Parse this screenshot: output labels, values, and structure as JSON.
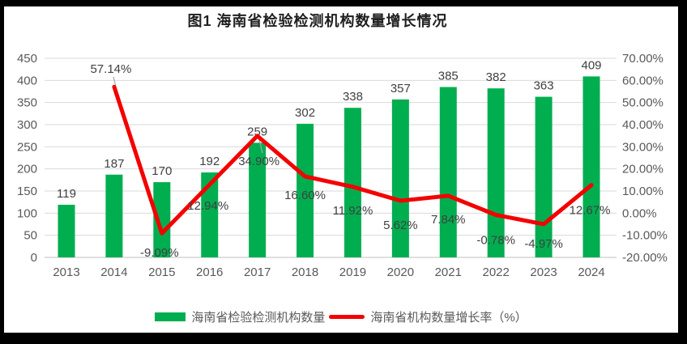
{
  "title": "图1 海南省检验检测机构数量增长情况",
  "colors": {
    "bar": "#00AE50",
    "line": "#F40000",
    "grid": "#D9D9D9",
    "axis_zero_line": "#BFBFBF",
    "tick_label": "#595959",
    "data_label": "#404040",
    "leader": "#A6A6A6",
    "card_background": "#FFFFFF",
    "page_background": "#000000"
  },
  "legend": {
    "items": [
      {
        "label": "海南省检验检测机构数量",
        "marker": "bar-swatch",
        "color": "#00AE50"
      },
      {
        "label": "海南省机构数量增长率（%）",
        "marker": "line-swatch",
        "color": "#F40000"
      }
    ]
  },
  "chart_data": {
    "type": "bar+line combo",
    "title": "图1 海南省检验检测机构数量增长情况",
    "categories": [
      "2013",
      "2014",
      "2015",
      "2016",
      "2017",
      "2018",
      "2019",
      "2020",
      "2021",
      "2022",
      "2023",
      "2024"
    ],
    "series": [
      {
        "name": "海南省检验检测机构数量",
        "type": "bar",
        "axis": "left",
        "color": "#00AE50",
        "values": [
          119,
          187,
          170,
          192,
          259,
          302,
          338,
          357,
          385,
          382,
          363,
          409
        ],
        "value_labels": [
          "119",
          "187",
          "170",
          "192",
          "259",
          "302",
          "338",
          "357",
          "385",
          "382",
          "363",
          "409"
        ]
      },
      {
        "name": "海南省机构数量增长率（%）",
        "type": "line",
        "axis": "right",
        "color": "#F40000",
        "values": [
          null,
          57.14,
          -9.09,
          12.94,
          34.9,
          16.6,
          11.92,
          5.62,
          7.84,
          -0.78,
          -4.97,
          12.67
        ],
        "value_labels": [
          "",
          "57.14%",
          "-9.09%",
          "12.94%",
          "34.90%",
          "16.60%",
          "11.92%",
          "5.62%",
          "7.84%",
          "-0.78%",
          "-4.97%",
          "12.67%"
        ]
      }
    ],
    "left_axis": {
      "min": 0,
      "max": 450,
      "step": 50,
      "ticks": [
        "0",
        "50",
        "100",
        "150",
        "200",
        "250",
        "300",
        "350",
        "400",
        "450"
      ]
    },
    "right_axis": {
      "min": -20,
      "max": 70,
      "step": 10,
      "ticks": [
        "-20.00%",
        "-10.00%",
        "0.00%",
        "10.00%",
        "20.00%",
        "30.00%",
        "40.00%",
        "50.00%",
        "60.00%",
        "70.00%"
      ]
    },
    "grid": true,
    "legend_position": "bottom"
  }
}
